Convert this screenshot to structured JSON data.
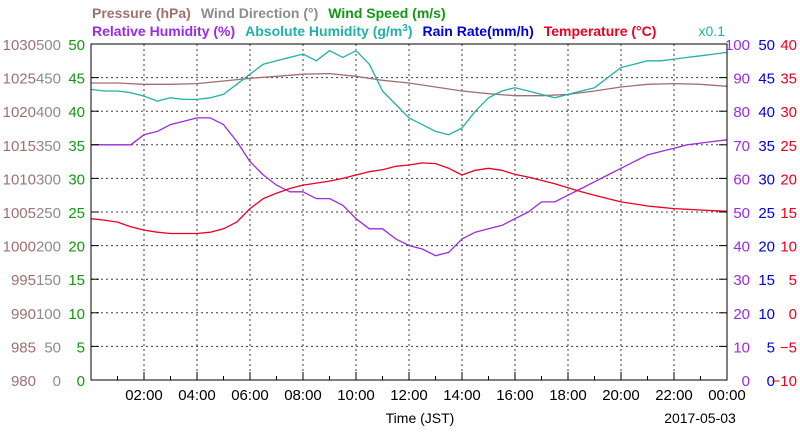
{
  "chart_data": {
    "type": "line",
    "date_label": "2017-05-03",
    "xlabel": "Time (JST)",
    "x_ticks": [
      "02:00",
      "04:00",
      "06:00",
      "08:00",
      "10:00",
      "12:00",
      "14:00",
      "16:00",
      "18:00",
      "20:00",
      "22:00",
      "00:00"
    ],
    "x_hours": [
      0,
      24
    ],
    "grid": true,
    "legend_row1": [
      {
        "text": "Pressure (hPa)",
        "color": "#a07070"
      },
      {
        "text": "Wind Direction (°)",
        "color": "#8c8c8c"
      },
      {
        "text": "Wind Speed (m/s)",
        "color": "#119911"
      }
    ],
    "legend_row2": [
      {
        "text": "Relative Humidity (%)",
        "color": "#9a2be2"
      },
      {
        "text": "Absolute Humidity (g/m",
        "sup": "3",
        "tail": ")",
        "color": "#22b0a8",
        "scale_note": "x0.1"
      },
      {
        "text": "Rain Rate(mm/h)",
        "color": "#0000dd"
      },
      {
        "text": "Temperature (°C)",
        "color": "#ee0022"
      }
    ],
    "axes": {
      "pressure": {
        "color": "#a07070",
        "ticks": [
          "1030",
          "1025",
          "1020",
          "1015",
          "1010",
          "1005",
          "1000",
          "995",
          "990",
          "985",
          "980"
        ],
        "range": [
          980,
          1030
        ]
      },
      "wind_dir": {
        "color": "#8c8c8c",
        "ticks": [
          "500",
          "450",
          "400",
          "350",
          "300",
          "250",
          "200",
          "150",
          "100",
          "50",
          "0"
        ],
        "range": [
          0,
          500
        ]
      },
      "wind_speed": {
        "color": "#119911",
        "ticks": [
          "50",
          "45",
          "40",
          "35",
          "30",
          "25",
          "20",
          "15",
          "10",
          "5",
          "0"
        ],
        "range": [
          0,
          50
        ]
      },
      "humidity": {
        "color": "#9a2be2",
        "ticks": [
          "100",
          "90",
          "80",
          "70",
          "60",
          "50",
          "40",
          "30",
          "20",
          "10",
          "0"
        ],
        "range": [
          0,
          100
        ]
      },
      "rain": {
        "color": "#0000dd",
        "ticks": [
          "50",
          "45",
          "40",
          "35",
          "30",
          "25",
          "20",
          "15",
          "10",
          "5",
          "0"
        ],
        "range": [
          0,
          50
        ]
      },
      "temperature": {
        "color": "#ee0022",
        "ticks": [
          "40",
          "35",
          "30",
          "25",
          "20",
          "15",
          "10",
          "5",
          "0",
          "−5",
          "−10"
        ],
        "range": [
          -10,
          40
        ]
      }
    },
    "series": [
      {
        "name": "Pressure (hPa)",
        "color": "#a07070",
        "axis": "pressure",
        "x": [
          0,
          1,
          2,
          3,
          4,
          5,
          6,
          7,
          8,
          9,
          10,
          11,
          12,
          13,
          14,
          15,
          16,
          17,
          18,
          19,
          20,
          21,
          22,
          23,
          24
        ],
        "y": [
          1024.2,
          1024.2,
          1024.0,
          1024.0,
          1024.1,
          1024.5,
          1024.9,
          1025.2,
          1025.5,
          1025.6,
          1025.2,
          1024.6,
          1024.2,
          1023.6,
          1023.0,
          1022.6,
          1022.3,
          1022.3,
          1022.5,
          1023.0,
          1023.6,
          1024.0,
          1024.1,
          1024.0,
          1023.7
        ]
      },
      {
        "name": "Absolute Humidity (g/m3) x0.1",
        "color": "#22b0a8",
        "axis": "humidity",
        "x": [
          0,
          0.5,
          1,
          1.5,
          2,
          2.5,
          3,
          3.5,
          4,
          4.5,
          5,
          5.5,
          6,
          6.5,
          7,
          7.5,
          8,
          8.5,
          9,
          9.5,
          10,
          10.5,
          11,
          11.5,
          12,
          12.5,
          13,
          13.5,
          14,
          14.5,
          15,
          15.5,
          16,
          16.5,
          17,
          17.5,
          18,
          18.5,
          19,
          19.5,
          20,
          20.5,
          21,
          21.5,
          22,
          22.5,
          23,
          23.5,
          24
        ],
        "y": [
          86.5,
          86,
          86,
          85.5,
          84.5,
          83,
          84,
          83.5,
          83.5,
          84,
          85,
          88,
          91,
          94,
          95,
          96,
          97,
          95,
          98,
          96,
          98,
          94,
          86,
          82,
          78,
          76,
          74,
          73,
          75,
          80,
          84,
          86,
          87,
          86,
          85,
          84,
          85,
          86,
          87,
          90,
          93,
          94,
          95,
          95,
          95.5,
          96,
          96.5,
          97,
          97.5
        ]
      },
      {
        "name": "Relative Humidity (%)",
        "color": "#9a2be2",
        "axis": "humidity",
        "x": [
          0,
          0.5,
          1,
          1.5,
          2,
          2.5,
          3,
          3.5,
          4,
          4.5,
          5,
          5.5,
          6,
          6.5,
          7,
          7.5,
          8,
          8.5,
          9,
          9.5,
          10,
          10.5,
          11,
          11.5,
          12,
          12.5,
          13,
          13.5,
          14,
          14.5,
          15,
          15.5,
          16,
          16.5,
          17,
          17.5,
          18,
          18.5,
          19,
          19.5,
          20,
          20.5,
          21,
          21.5,
          22,
          22.5,
          23,
          23.5,
          24
        ],
        "y": [
          70,
          70,
          70,
          70,
          73,
          74,
          76,
          77,
          78,
          78,
          76,
          71,
          65,
          61,
          58,
          56,
          56,
          54,
          54,
          52,
          48,
          45,
          45,
          42,
          40,
          39,
          37,
          38,
          42,
          44,
          45,
          46,
          48,
          50,
          53,
          53,
          55,
          57,
          59,
          61,
          63,
          65,
          67,
          68,
          69,
          70,
          70.5,
          71,
          71.5
        ]
      },
      {
        "name": "Temperature (°C)",
        "color": "#ee0022",
        "axis": "temperature",
        "x": [
          0,
          0.5,
          1,
          1.5,
          2,
          2.5,
          3,
          3.5,
          4,
          4.5,
          5,
          5.5,
          6,
          6.5,
          7,
          7.5,
          8,
          8.5,
          9,
          9.5,
          10,
          10.5,
          11,
          11.5,
          12,
          12.5,
          13,
          13.5,
          14,
          14.5,
          15,
          15.5,
          16,
          16.5,
          17,
          17.5,
          18,
          18.5,
          19,
          19.5,
          20,
          20.5,
          21,
          21.5,
          22,
          22.5,
          23,
          23.5,
          24
        ],
        "y": [
          14,
          13.8,
          13.5,
          12.8,
          12.3,
          12,
          11.8,
          11.8,
          11.8,
          12,
          12.5,
          13.5,
          15.5,
          17,
          17.8,
          18.5,
          19,
          19.3,
          19.6,
          20,
          20.5,
          21,
          21.3,
          21.8,
          22,
          22.3,
          22.2,
          21.5,
          20.5,
          21.2,
          21.5,
          21.2,
          20.6,
          20.2,
          19.7,
          19.2,
          18.6,
          18,
          17.5,
          17,
          16.5,
          16.2,
          15.9,
          15.7,
          15.5,
          15.4,
          15.3,
          15.2,
          15.1
        ]
      }
    ]
  }
}
